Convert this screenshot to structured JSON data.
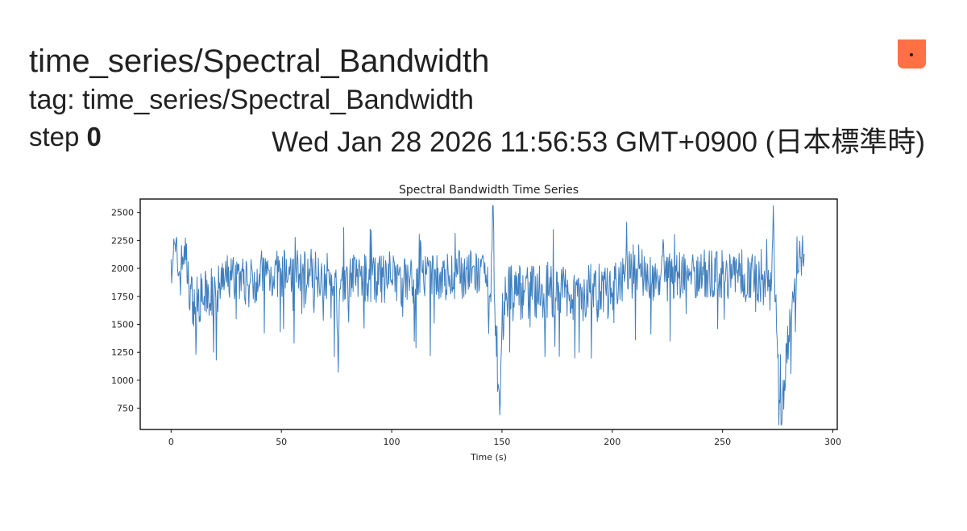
{
  "card": {
    "title": "time_series/Spectral_Bandwidth",
    "tag": "tag: time_series/Spectral_Bandwidth",
    "step_label": "step",
    "step_value": "0",
    "wall_time": "Wed Jan 28 2026 11:56:53 GMT+0900 (日本標準時)",
    "pin_color": "#ff7043",
    "pin_icon": "pin-icon"
  },
  "chart_data": {
    "type": "line",
    "title": "Spectral Bandwidth Time Series",
    "xlabel": "Time (s)",
    "ylabel": "",
    "xlim": [
      -14,
      302
    ],
    "ylim": [
      560,
      2620
    ],
    "xticks": [
      0,
      50,
      100,
      150,
      200,
      250,
      300
    ],
    "yticks": [
      750,
      1000,
      1250,
      1500,
      1750,
      2000,
      2250,
      2500
    ],
    "grid": false,
    "color": "#3f7fbf",
    "series": [
      {
        "name": "",
        "x_start": 0,
        "x_end": 287,
        "anchors": [
          [
            0,
            2080
          ],
          [
            2,
            2150
          ],
          [
            4,
            1920
          ],
          [
            6,
            2200
          ],
          [
            8,
            1850
          ],
          [
            10,
            1700
          ],
          [
            15,
            1750
          ],
          [
            20,
            1850
          ],
          [
            20.5,
            1180
          ],
          [
            21,
            1800
          ],
          [
            25,
            1900
          ],
          [
            30,
            1950
          ],
          [
            35,
            1850
          ],
          [
            40,
            1950
          ],
          [
            50,
            1950
          ],
          [
            60,
            1980
          ],
          [
            70,
            1950
          ],
          [
            75,
            1800
          ],
          [
            76,
            1350
          ],
          [
            77,
            1900
          ],
          [
            80,
            1950
          ],
          [
            90,
            1900
          ],
          [
            100,
            1900
          ],
          [
            110,
            1900
          ],
          [
            120,
            1900
          ],
          [
            130,
            1950
          ],
          [
            140,
            1950
          ],
          [
            143,
            1850
          ],
          [
            145,
            1700
          ],
          [
            146,
            2580
          ],
          [
            147,
            1400
          ],
          [
            148,
            900
          ],
          [
            149,
            690
          ],
          [
            150,
            1500
          ],
          [
            152,
            1780
          ],
          [
            160,
            1800
          ],
          [
            170,
            1780
          ],
          [
            180,
            1780
          ],
          [
            190,
            1780
          ],
          [
            200,
            1780
          ],
          [
            202,
            1800
          ],
          [
            205,
            1950
          ],
          [
            210,
            2000
          ],
          [
            220,
            1900
          ],
          [
            230,
            1950
          ],
          [
            240,
            1950
          ],
          [
            250,
            1950
          ],
          [
            260,
            1950
          ],
          [
            268,
            1900
          ],
          [
            272,
            1800
          ],
          [
            273,
            2580
          ],
          [
            274,
            1700
          ],
          [
            275,
            1200
          ],
          [
            276,
            800
          ],
          [
            277,
            650
          ],
          [
            278,
            1000
          ],
          [
            280,
            1400
          ],
          [
            282,
            1750
          ],
          [
            284,
            1950
          ],
          [
            286,
            2150
          ],
          [
            287,
            2130
          ]
        ]
      }
    ]
  }
}
